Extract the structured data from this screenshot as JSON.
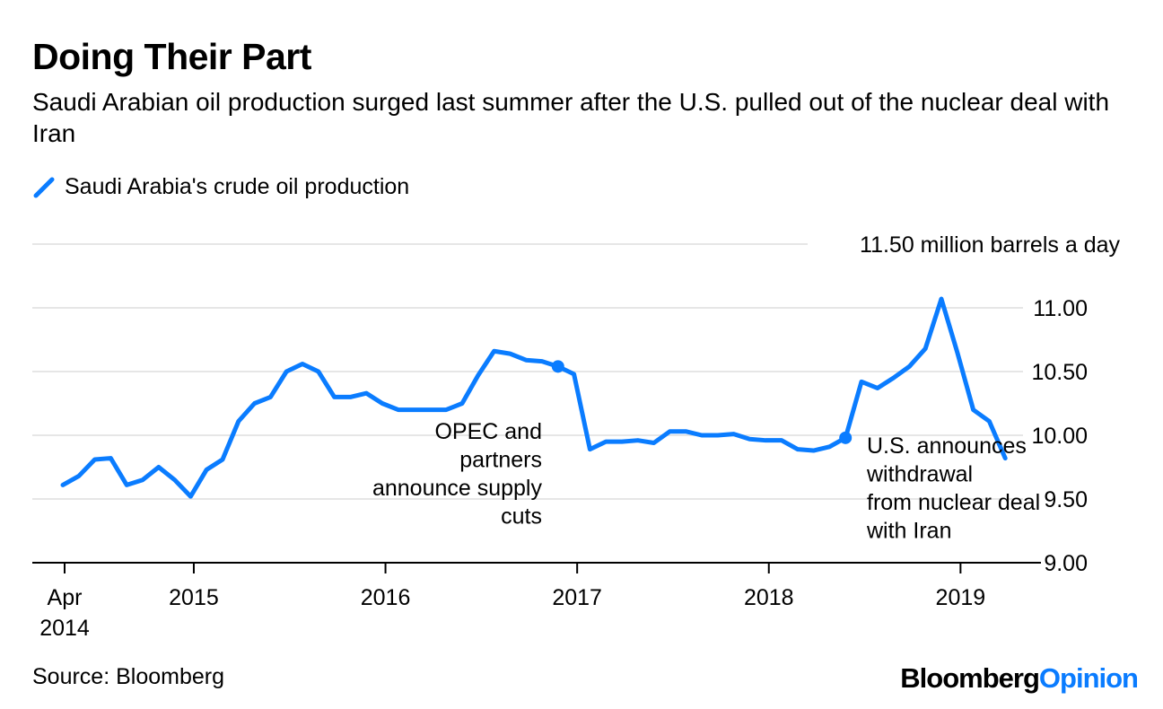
{
  "title": "Doing Their Part",
  "subtitle": "Saudi Arabian oil production surged last summer after the U.S. pulled out of the nuclear deal with Iran",
  "source": "Source: Bloomberg",
  "logo": {
    "part1": "Bloomberg",
    "part2": "Opinion"
  },
  "colors": {
    "series": "#0a7cff",
    "grid": "#e6e6e6",
    "axis": "#000000"
  },
  "chart_data": {
    "type": "line",
    "title": "Doing Their Part",
    "legend": {
      "entries": [
        "Saudi Arabia's crude oil production"
      ],
      "placement": "top-left"
    },
    "ylabel": "11.50 million barrels a day",
    "ylim": [
      9.0,
      11.5
    ],
    "yticks": [
      "9.00",
      "9.50",
      "10.00",
      "10.50",
      "11.00",
      "11.50"
    ],
    "y_axis_side": "right",
    "grid": true,
    "xticks": [
      {
        "label": [
          "Apr",
          "2014"
        ],
        "date": "2014-04"
      },
      {
        "label": [
          "2015"
        ],
        "date": "2015-01"
      },
      {
        "label": [
          "2016"
        ],
        "date": "2016-01"
      },
      {
        "label": [
          "2017"
        ],
        "date": "2017-01"
      },
      {
        "label": [
          "2018"
        ],
        "date": "2018-01"
      },
      {
        "label": [
          "2019"
        ],
        "date": "2019-01"
      }
    ],
    "series": [
      {
        "name": "Saudi Arabia's crude oil production",
        "start": "2014-04",
        "frequency": "monthly",
        "values": [
          9.61,
          9.68,
          9.81,
          9.82,
          9.61,
          9.65,
          9.75,
          9.65,
          9.52,
          9.73,
          9.81,
          10.11,
          10.25,
          10.3,
          10.5,
          10.56,
          10.5,
          10.3,
          10.3,
          10.33,
          10.25,
          10.2,
          10.2,
          10.2,
          10.2,
          10.25,
          10.47,
          10.66,
          10.64,
          10.59,
          10.58,
          10.54,
          10.48,
          9.89,
          9.95,
          9.95,
          9.96,
          9.94,
          10.03,
          10.03,
          10.0,
          10.0,
          10.01,
          9.97,
          9.96,
          9.96,
          9.89,
          9.88,
          9.91,
          9.98,
          10.42,
          10.37,
          10.45,
          10.54,
          10.68,
          11.07,
          10.65,
          10.2,
          10.11,
          9.82
        ]
      }
    ],
    "annotations": [
      {
        "date": "2016-11",
        "value": 10.54,
        "text": [
          "OPEC and",
          "partners",
          "announce supply",
          "cuts"
        ]
      },
      {
        "date": "2018-05",
        "value": 9.98,
        "text": [
          "U.S. announces",
          "withdrawal",
          "from nuclear deal",
          "with Iran"
        ]
      }
    ]
  }
}
